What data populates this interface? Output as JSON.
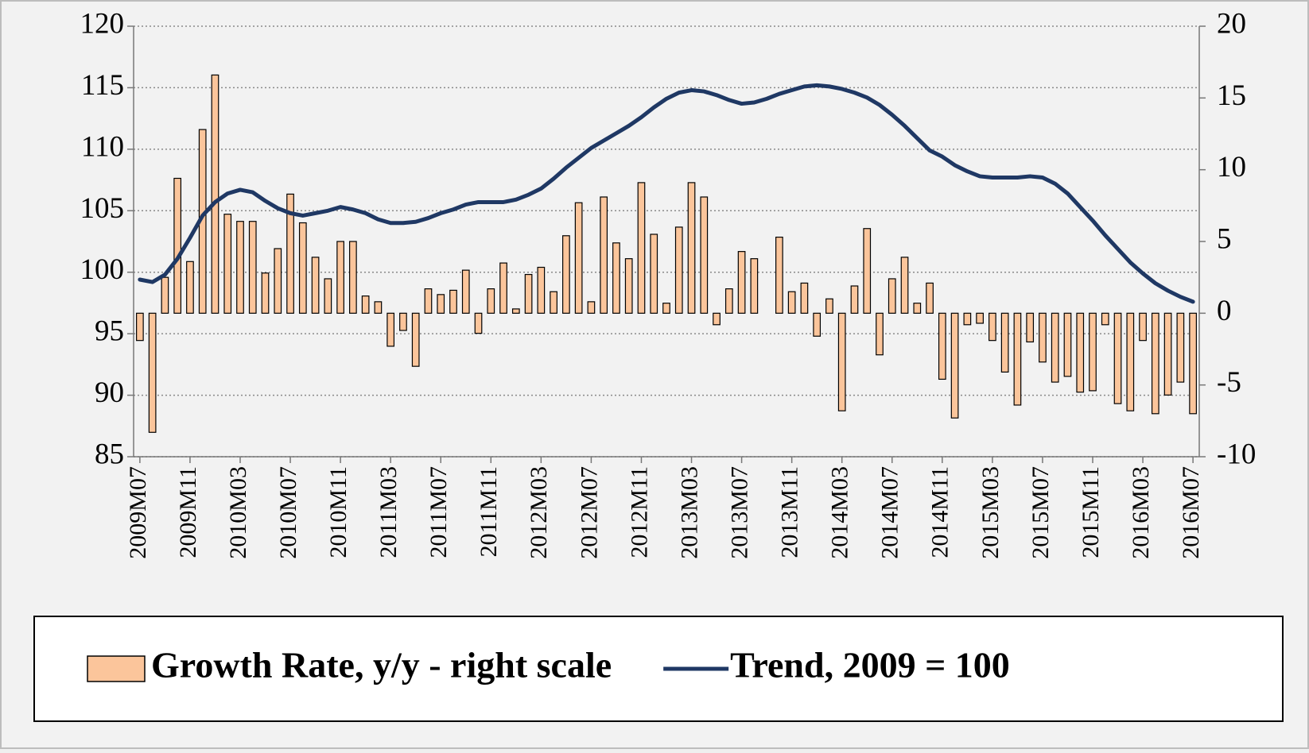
{
  "chart_data": {
    "type": "bar",
    "categories": [
      "2009M07",
      null,
      null,
      null,
      "2009M11",
      null,
      null,
      null,
      "2010M03",
      null,
      null,
      null,
      "2010M07",
      null,
      null,
      null,
      "2010M11",
      null,
      null,
      null,
      "2011M03",
      null,
      null,
      null,
      "2011M07",
      null,
      null,
      null,
      "2011M11",
      null,
      null,
      null,
      "2012M03",
      null,
      null,
      null,
      "2012M07",
      null,
      null,
      null,
      "2012M11",
      null,
      null,
      null,
      "2013M03",
      null,
      null,
      null,
      "2013M07",
      null,
      null,
      null,
      "2013M11",
      null,
      null,
      null,
      "2014M03",
      null,
      null,
      null,
      "2014M07",
      null,
      null,
      null,
      "2014M11",
      null,
      null,
      null,
      "2015M03",
      null,
      null,
      null,
      "2015M07",
      null,
      null,
      null,
      "2015M11",
      null,
      null,
      null,
      "2016M03",
      null,
      null,
      null,
      "2016M07"
    ],
    "series": [
      {
        "name": "Growth Rate, y/y - right scale",
        "type": "bar",
        "axis": "y2",
        "color": "#fbc59b",
        "values": [
          -1.9,
          -8.3,
          2.5,
          9.4,
          3.6,
          12.8,
          16.6,
          6.9,
          6.4,
          6.4,
          2.8,
          4.5,
          8.3,
          6.3,
          3.9,
          2.4,
          5.0,
          5.0,
          1.2,
          0.8,
          -2.3,
          -1.2,
          -3.7,
          1.7,
          1.3,
          1.6,
          3.0,
          -1.4,
          1.7,
          3.5,
          0.3,
          2.7,
          3.2,
          1.5,
          5.4,
          7.7,
          0.8,
          8.1,
          4.9,
          3.8,
          9.1,
          5.5,
          0.7,
          6.0,
          9.1,
          8.1,
          -0.8,
          1.7,
          4.3,
          3.8,
          0,
          5.3,
          1.5,
          2.1,
          -1.6,
          1.0,
          -6.8,
          1.9,
          5.9,
          -2.9,
          2.4,
          3.9,
          0.7,
          2.1,
          -4.6,
          -7.3,
          -0.8,
          -0.7,
          -1.9,
          -4.1,
          -6.4,
          -2.0,
          -3.4,
          -4.8,
          -4.4,
          -5.5,
          -5.4,
          -0.8,
          -6.3,
          -6.8,
          -1.9,
          -7.0,
          -5.7,
          -4.8,
          -7.0
        ]
      },
      {
        "name": "Trend, 2009 = 100",
        "type": "line",
        "color": "#1f3864",
        "values": [
          99.4,
          99.2,
          99.8,
          101.1,
          102.8,
          104.6,
          105.7,
          106.4,
          106.7,
          106.5,
          105.8,
          105.2,
          104.8,
          104.6,
          104.8,
          105.0,
          105.3,
          105.1,
          104.8,
          104.3,
          104.0,
          104.0,
          104.1,
          104.4,
          104.8,
          105.1,
          105.5,
          105.7,
          105.7,
          105.7,
          105.9,
          106.3,
          106.8,
          107.6,
          108.5,
          109.3,
          110.1,
          110.7,
          111.3,
          111.9,
          112.6,
          113.4,
          114.1,
          114.6,
          114.8,
          114.7,
          114.4,
          114.0,
          113.7,
          113.8,
          114.1,
          114.5,
          114.8,
          115.1,
          115.2,
          115.1,
          114.9,
          114.6,
          114.2,
          113.6,
          112.8,
          111.9,
          110.9,
          109.9,
          109.4,
          108.7,
          108.2,
          107.8,
          107.7,
          107.7,
          107.7,
          107.8,
          107.7,
          107.2,
          106.4,
          105.3,
          104.2,
          103.0,
          101.9,
          100.8,
          99.9,
          99.1,
          98.5,
          98.0,
          97.6
        ]
      }
    ],
    "ylim": [
      85,
      120
    ],
    "yticks": [
      85,
      90,
      95,
      100,
      105,
      110,
      115,
      120
    ],
    "y2lim": [
      -10,
      20
    ],
    "y2ticks": [
      -10,
      -5,
      0,
      5,
      10,
      15,
      20
    ],
    "grid": true,
    "legend": "bottom"
  }
}
